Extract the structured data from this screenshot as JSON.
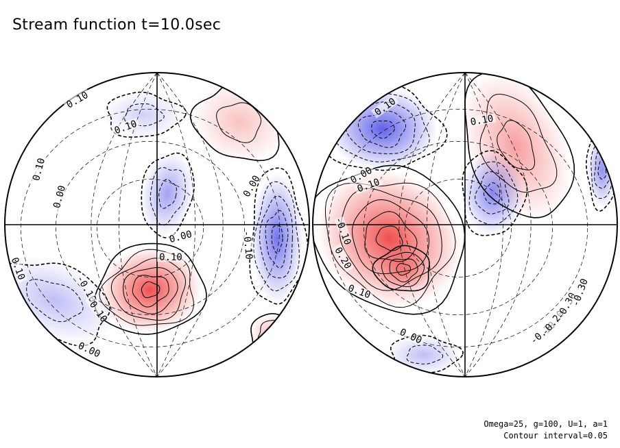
{
  "title": "Stream function t=10.0sec",
  "footer": {
    "params": "Omega=25, g=100, U=1, a=1",
    "contour": "Contour interval=0.05"
  },
  "colors": {
    "positive": "#f05050",
    "negative": "#4646e6",
    "line": "#000000",
    "background": "#ffffff"
  },
  "chart_data": {
    "type": "contour",
    "projection": "orthographic, two hemispheres",
    "variable": "stream function",
    "time": "t=10.0sec",
    "contour_interval": 0.05,
    "parameters": {
      "Omega": 25,
      "g": 100,
      "U": 1,
      "a": 1
    },
    "hemispheres": [
      {
        "name": "left",
        "labels": [
          "0.10",
          "0.10",
          "0.10",
          "0.00",
          "0.00",
          "0.00",
          "0.10",
          "-0.10",
          "-0.10",
          "0.10",
          "-0.10",
          "0.00"
        ],
        "features": [
          {
            "sign": "+",
            "level": 0.25,
            "note": "closed high"
          },
          {
            "sign": "-",
            "level": -0.2,
            "note": "center low"
          },
          {
            "sign": "-",
            "level": -0.15,
            "note": "right low"
          },
          {
            "sign": "-",
            "level": -0.1,
            "note": "lower-left low"
          },
          {
            "sign": "+",
            "level": 0.1,
            "note": "upper-right high"
          }
        ]
      },
      {
        "name": "right",
        "labels": [
          "0.10",
          "0.10",
          "0.00",
          "0.10",
          "-0.10",
          "0.20",
          "0.10",
          "0.00",
          "-0.10",
          "-0.20",
          "-0.30",
          "-0.30"
        ],
        "features": [
          {
            "sign": "+",
            "level": 0.4,
            "note": "strong high"
          },
          {
            "sign": "-",
            "level": -0.2,
            "note": "upper-left low"
          },
          {
            "sign": "+",
            "level": 0.15,
            "note": "upper-right high"
          },
          {
            "sign": "-",
            "level": -0.15,
            "note": "center low"
          },
          {
            "sign": "-",
            "level": -0.3,
            "note": "lower-right low"
          }
        ]
      }
    ]
  }
}
